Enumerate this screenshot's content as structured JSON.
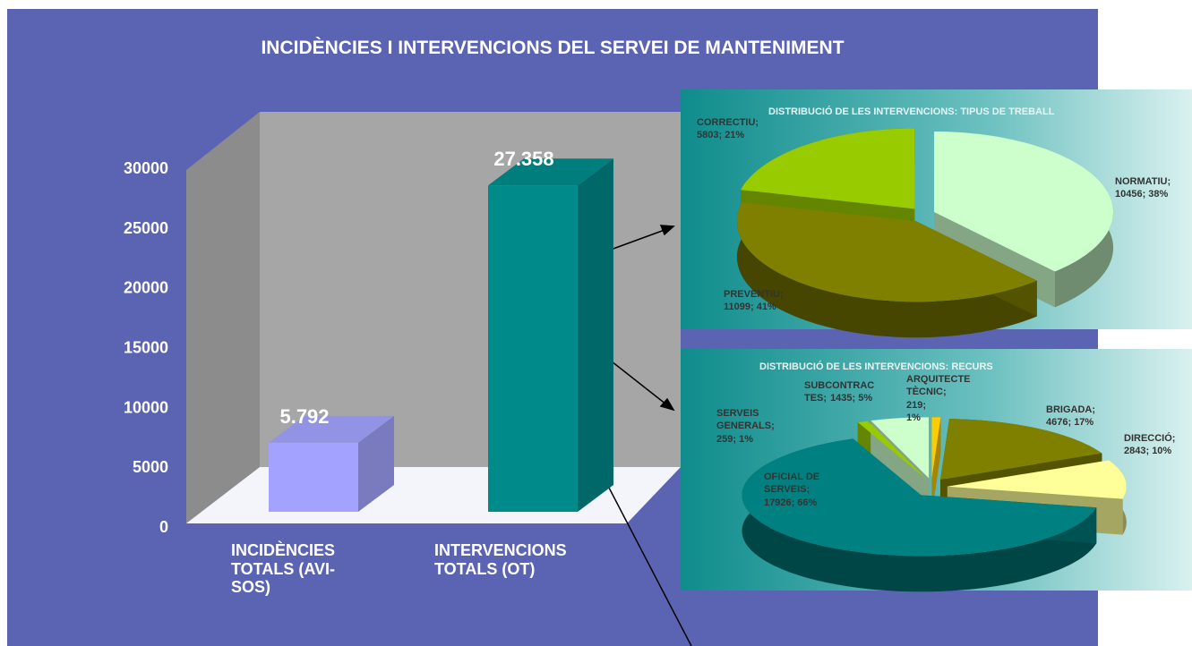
{
  "chart_data": [
    {
      "type": "bar",
      "title": "INCIDÈNCIES I INTERVENCIONS DEL SERVEI DE MANTENIMENT",
      "categories": [
        "INCIDÈNCIES\nTOTALS (AVI-\nSOS)",
        "INTERVENCIONS\nTOTALS (OT)"
      ],
      "values": [
        5792,
        27358
      ],
      "value_labels": [
        "5.792",
        "27.358"
      ],
      "colors": [
        "#a3a3ff",
        "#008b8b"
      ],
      "ylim": [
        0,
        30000
      ],
      "yticks": [
        0,
        5000,
        10000,
        15000,
        20000,
        25000,
        30000
      ]
    },
    {
      "type": "pie",
      "title": "DISTRIBUCIÓ DE LES INTERVENCIONS: TIPUS DE TREBALL",
      "categories": [
        "NORMATIU;",
        "PREVENTIU;",
        "CORRECTIU;"
      ],
      "values": [
        10456,
        11099,
        5803
      ],
      "value_labels": [
        "10456; 38%",
        "11099; 41%",
        "5803; 21%"
      ],
      "colors": [
        "#ccffcc",
        "#808000",
        "#99cc00"
      ]
    },
    {
      "type": "pie",
      "title": "DISTRIBUCIÓ DE LES INTERVENCIONS: RECURS",
      "categories": [
        "ARQUITECTE\nTÈCNIC;",
        "BRIGADA;",
        "DIRECCIÓ;",
        "OFICIAL DE\nSERVEIS;",
        "SERVEIS\nGENERALS;",
        "SUBCONTRAC\nTES;"
      ],
      "values": [
        219,
        4676,
        2843,
        17926,
        259,
        1435
      ],
      "value_labels": [
        "219;\n1%",
        "4676; 17%",
        "2843; 10%",
        "17926; 66%",
        "259; 1%",
        "1435; 5%"
      ],
      "colors": [
        "#ffcc00",
        "#808000",
        "#ffff99",
        "#008080",
        "#99cc00",
        "#ccffcc"
      ]
    }
  ]
}
